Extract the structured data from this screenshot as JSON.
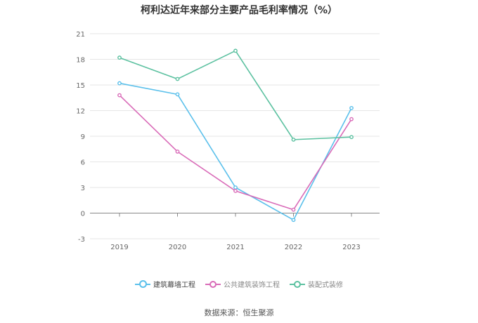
{
  "chart_data": {
    "type": "line",
    "title": "柯利达近年来部分主要产品毛利率情况（%）",
    "xlabel": "",
    "ylabel": "",
    "categories": [
      "2019",
      "2020",
      "2021",
      "2022",
      "2023"
    ],
    "ylim": [
      -3,
      21
    ],
    "yticks": [
      -3,
      0,
      3,
      6,
      9,
      12,
      15,
      18,
      21
    ],
    "grid": true,
    "legend_position": "bottom",
    "series": [
      {
        "name": "建筑幕墙工程",
        "color": "#5bc0eb",
        "values": [
          15.2,
          13.9,
          3.0,
          -0.8,
          12.3
        ],
        "active": true
      },
      {
        "name": "公共建筑装饰工程",
        "color": "#d96bb8",
        "values": [
          13.8,
          7.2,
          2.6,
          0.4,
          11.0
        ],
        "active": false
      },
      {
        "name": "装配式装修",
        "color": "#5cc1a0",
        "values": [
          18.2,
          15.7,
          19.0,
          8.6,
          8.9
        ],
        "active": false
      }
    ]
  },
  "source": "数据来源：恒生聚源"
}
